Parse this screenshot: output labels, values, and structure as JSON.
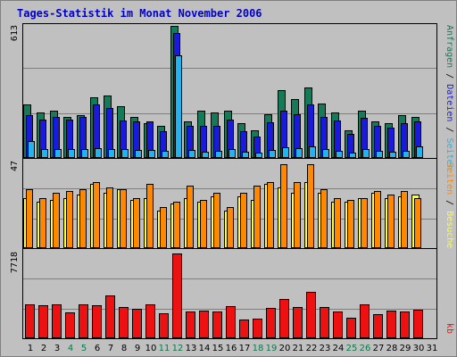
{
  "title": "Tages-Statistik im Monat November 2006",
  "colors": {
    "background": "#c0c0c0",
    "title": "#0000cc",
    "panel_border": "#000000",
    "grid": "#7f7f7f",
    "anfragen": "#147a57",
    "dateien": "#1a1add",
    "seiten": "#22b4ee",
    "besuche": "#ff8800",
    "seiten_besuche": "#ffff33",
    "kb": "#ee1111",
    "weekend_label": "#0a7a4a",
    "day_label": "#000000"
  },
  "right_labels": {
    "hits": [
      "Anfragen",
      "Dateien",
      "Seiten"
    ],
    "visits": [
      "Besuche",
      "Seiten"
    ],
    "kb": "kb",
    "separator": " / "
  },
  "chart_data": [
    {
      "type": "bar",
      "panel": "hits",
      "max_label": "613",
      "ylim": [
        0,
        613
      ],
      "categories": [
        "1",
        "2",
        "3",
        "4",
        "5",
        "6",
        "7",
        "8",
        "9",
        "10",
        "11",
        "12",
        "13",
        "14",
        "15",
        "16",
        "17",
        "18",
        "19",
        "20",
        "21",
        "22",
        "23",
        "24",
        "25",
        "26",
        "27",
        "28",
        "29",
        "30",
        "31"
      ],
      "series": [
        {
          "name": "Anfragen",
          "values": [
            248,
            210,
            220,
            190,
            200,
            280,
            290,
            240,
            192,
            160,
            150,
            613,
            168,
            218,
            210,
            220,
            160,
            130,
            205,
            313,
            272,
            326,
            252,
            210,
            130,
            220,
            170,
            160,
            200,
            190,
            0
          ]
        },
        {
          "name": "Dateien",
          "values": [
            200,
            180,
            190,
            180,
            190,
            250,
            232,
            172,
            170,
            168,
            124,
            580,
            150,
            150,
            148,
            180,
            124,
            100,
            164,
            220,
            204,
            247,
            192,
            172,
            110,
            185,
            150,
            140,
            160,
            170,
            0
          ]
        },
        {
          "name": "Seiten",
          "values": [
            80,
            40,
            40,
            40,
            40,
            45,
            42,
            40,
            36,
            36,
            32,
            475,
            38,
            30,
            32,
            40,
            30,
            26,
            38,
            50,
            44,
            52,
            40,
            32,
            24,
            40,
            35,
            30,
            35,
            52,
            0
          ]
        }
      ]
    },
    {
      "type": "bar",
      "panel": "visits",
      "max_label": "47",
      "ylim": [
        0,
        47
      ],
      "categories": [
        "1",
        "2",
        "3",
        "4",
        "5",
        "6",
        "7",
        "8",
        "9",
        "10",
        "11",
        "12",
        "13",
        "14",
        "15",
        "16",
        "17",
        "18",
        "19",
        "20",
        "21",
        "22",
        "23",
        "24",
        "25",
        "26",
        "27",
        "28",
        "29",
        "30",
        "31"
      ],
      "series": [
        {
          "name": "Besuche",
          "values": [
            33,
            28,
            31,
            32,
            33,
            37,
            34,
            33,
            28,
            36,
            23,
            26,
            35,
            27,
            31,
            23,
            31,
            35,
            37,
            47,
            37,
            47,
            33,
            28,
            27,
            28,
            32,
            30,
            32,
            28,
            0
          ]
        },
        {
          "name": "Seiten",
          "values": [
            28,
            26,
            27,
            28,
            30,
            36,
            31,
            33,
            27,
            28,
            21,
            25,
            28,
            26,
            29,
            21,
            29,
            27,
            36,
            34,
            31,
            37,
            31,
            26,
            26,
            28,
            31,
            28,
            29,
            30,
            0
          ]
        }
      ]
    },
    {
      "type": "bar",
      "panel": "kb",
      "max_label": "7718",
      "ylim": [
        0,
        7718
      ],
      "categories": [
        "1",
        "2",
        "3",
        "4",
        "5",
        "6",
        "7",
        "8",
        "9",
        "10",
        "11",
        "12",
        "13",
        "14",
        "15",
        "16",
        "17",
        "18",
        "19",
        "20",
        "21",
        "22",
        "23",
        "24",
        "25",
        "26",
        "27",
        "28",
        "29",
        "30",
        "31"
      ],
      "series": [
        {
          "name": "kb",
          "values": [
            3100,
            3000,
            3050,
            2350,
            3050,
            3000,
            3880,
            2850,
            2700,
            3100,
            2250,
            7718,
            2450,
            2500,
            2400,
            2900,
            1700,
            1800,
            2750,
            3600,
            2850,
            4200,
            2850,
            2450,
            1900,
            3050,
            2200,
            2500,
            2450,
            2600,
            0
          ]
        }
      ]
    }
  ],
  "x_axis": {
    "labels": [
      "1",
      "2",
      "3",
      "4",
      "5",
      "6",
      "7",
      "8",
      "9",
      "10",
      "11",
      "12",
      "13",
      "14",
      "15",
      "16",
      "17",
      "18",
      "19",
      "20",
      "21",
      "22",
      "23",
      "24",
      "25",
      "26",
      "27",
      "28",
      "29",
      "30",
      "31"
    ],
    "weekend": [
      "4",
      "5",
      "11",
      "12",
      "18",
      "19",
      "25",
      "26"
    ]
  }
}
